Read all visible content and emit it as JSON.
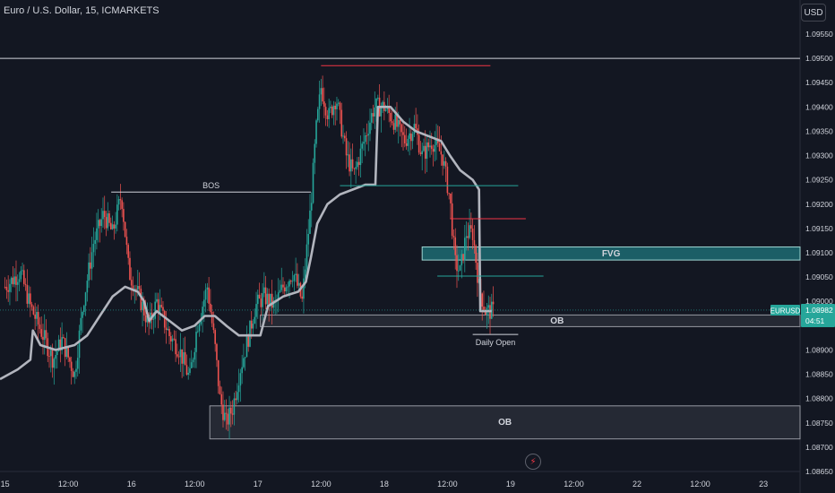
{
  "header": {
    "title": "Euro / U.S. Dollar, 15, ICMARKETS",
    "currency_button": "USD"
  },
  "colors": {
    "background": "#131722",
    "up": "#26a69a",
    "down": "#ef5350",
    "ma": "#b2b5be",
    "red_line": "#f23645",
    "teal": "#26a69a",
    "fvg_fill": "#1b5e66",
    "ob_fill": "#2a2e39",
    "text": "#d1d4dc"
  },
  "chart_data": {
    "type": "candlestick",
    "symbol_label": "EURUSD",
    "last_price": "1.08982",
    "countdown": "04:51",
    "ylim": [
      1.0865,
      1.0962
    ],
    "y_ticks": [
      "1.09550",
      "1.09500",
      "1.09450",
      "1.09400",
      "1.09350",
      "1.09300",
      "1.09250",
      "1.09200",
      "1.09150",
      "1.09100",
      "1.09050",
      "1.09000",
      "1.08900",
      "1.08850",
      "1.08800",
      "1.08750",
      "1.08700",
      "1.08650"
    ],
    "x_ticks": [
      "15",
      "12:00",
      "16",
      "12:00",
      "17",
      "12:00",
      "18",
      "12:00",
      "19",
      "12:00",
      "22",
      "12:00",
      "23"
    ],
    "x_tick_day": [
      0,
      0.5,
      1,
      1.5,
      2,
      2.5,
      3,
      3.5,
      4,
      4.5,
      5,
      5.5,
      6
    ],
    "x_range_days": [
      -0.04,
      6.29
    ],
    "price_path": [
      [
        0.0,
        1.0903
      ],
      [
        0.12,
        1.0906
      ],
      [
        0.2,
        1.0899
      ],
      [
        0.3,
        1.0893
      ],
      [
        0.38,
        1.0888
      ],
      [
        0.45,
        1.0892
      ],
      [
        0.55,
        1.0885
      ],
      [
        0.62,
        1.09
      ],
      [
        0.7,
        1.0912
      ],
      [
        0.78,
        1.0918
      ],
      [
        0.85,
        1.0914
      ],
      [
        0.92,
        1.0922
      ],
      [
        0.98,
        1.0906
      ],
      [
        1.06,
        1.0901
      ],
      [
        1.14,
        1.0895
      ],
      [
        1.2,
        1.09
      ],
      [
        1.3,
        1.0893
      ],
      [
        1.38,
        1.089
      ],
      [
        1.46,
        1.0884
      ],
      [
        1.52,
        1.0895
      ],
      [
        1.6,
        1.0903
      ],
      [
        1.66,
        1.0891
      ],
      [
        1.7,
        1.088
      ],
      [
        1.75,
        1.0875
      ],
      [
        1.8,
        1.0878
      ],
      [
        1.86,
        1.0886
      ],
      [
        1.92,
        1.0892
      ],
      [
        1.98,
        1.0899
      ],
      [
        2.05,
        1.0901
      ],
      [
        2.13,
        1.0899
      ],
      [
        2.2,
        1.0903
      ],
      [
        2.28,
        1.0906
      ],
      [
        2.35,
        1.09
      ],
      [
        2.42,
        1.092
      ],
      [
        2.46,
        1.0935
      ],
      [
        2.5,
        1.0944
      ],
      [
        2.56,
        1.0938
      ],
      [
        2.62,
        1.0942
      ],
      [
        2.7,
        1.093
      ],
      [
        2.76,
        1.0926
      ],
      [
        2.84,
        1.0933
      ],
      [
        2.92,
        1.094
      ],
      [
        3.0,
        1.094
      ],
      [
        3.08,
        1.0937
      ],
      [
        3.16,
        1.0933
      ],
      [
        3.24,
        1.0936
      ],
      [
        3.3,
        1.093
      ],
      [
        3.38,
        1.0933
      ],
      [
        3.46,
        1.093
      ],
      [
        3.52,
        1.0921
      ],
      [
        3.56,
        1.0908
      ],
      [
        3.6,
        1.0906
      ],
      [
        3.65,
        1.0914
      ],
      [
        3.7,
        1.0914
      ],
      [
        3.75,
        1.0903
      ],
      [
        3.8,
        1.0898
      ],
      [
        3.87,
        1.0898
      ]
    ],
    "ma_path": [
      [
        -0.04,
        1.0884
      ],
      [
        0.1,
        1.0886
      ],
      [
        0.2,
        1.0888
      ],
      [
        0.22,
        1.0894
      ],
      [
        0.28,
        1.0891
      ],
      [
        0.4,
        1.089
      ],
      [
        0.55,
        1.0891
      ],
      [
        0.65,
        1.0893
      ],
      [
        0.75,
        1.0897
      ],
      [
        0.85,
        1.0901
      ],
      [
        0.95,
        1.0903
      ],
      [
        1.05,
        1.0902
      ],
      [
        1.1,
        1.09
      ],
      [
        1.14,
        1.0896
      ],
      [
        1.2,
        1.0898
      ],
      [
        1.3,
        1.0896
      ],
      [
        1.4,
        1.0894
      ],
      [
        1.5,
        1.0895
      ],
      [
        1.58,
        1.0897
      ],
      [
        1.66,
        1.0897
      ],
      [
        1.75,
        1.0895
      ],
      [
        1.85,
        1.0893
      ],
      [
        1.95,
        1.0893
      ],
      [
        2.02,
        1.0893
      ],
      [
        2.08,
        1.0899
      ],
      [
        2.2,
        1.0901
      ],
      [
        2.32,
        1.0902
      ],
      [
        2.38,
        1.0904
      ],
      [
        2.42,
        1.0909
      ],
      [
        2.47,
        1.0916
      ],
      [
        2.55,
        1.092
      ],
      [
        2.65,
        1.0922
      ],
      [
        2.75,
        1.0923
      ],
      [
        2.85,
        1.0924
      ],
      [
        2.93,
        1.0924
      ],
      [
        2.95,
        1.094
      ],
      [
        3.05,
        1.094
      ],
      [
        3.15,
        1.0937
      ],
      [
        3.25,
        1.0935
      ],
      [
        3.35,
        1.0934
      ],
      [
        3.45,
        1.0933
      ],
      [
        3.52,
        1.093
      ],
      [
        3.6,
        1.0927
      ],
      [
        3.7,
        1.0925
      ],
      [
        3.75,
        1.0923
      ],
      [
        3.76,
        1.0898
      ],
      [
        3.8,
        1.0898
      ],
      [
        3.85,
        1.0898
      ]
    ],
    "annotations": {
      "horizontal_line": 1.095,
      "bos": {
        "label": "BOS",
        "level": 1.09225,
        "from_day": 0.84,
        "to_day": 2.42
      },
      "ob_upper": {
        "label": "OB",
        "top": 1.08972,
        "bottom": 1.08948,
        "from_day": 2.02
      },
      "ob_lower": {
        "label": "OB",
        "top": 1.08785,
        "bottom": 1.08717,
        "from_day": 1.62
      },
      "fvg": {
        "label": "FVG",
        "top": 1.09112,
        "bottom": 1.09085,
        "from_day": 3.3
      },
      "daily_open": {
        "label": "Daily Open",
        "level": 1.08932,
        "from_day": 3.7,
        "to_day": 4.06
      },
      "red_top": {
        "level": 1.09485,
        "from_day": 2.5,
        "to_day": 3.84
      },
      "red_mid": {
        "level": 1.0917,
        "from_day": 3.52,
        "to_day": 4.12
      },
      "teal_high": {
        "level": 1.09238,
        "from_day": 2.65,
        "to_day": 4.06
      },
      "teal_low": {
        "level": 1.09052,
        "from_day": 3.42,
        "to_day": 4.26
      }
    }
  }
}
